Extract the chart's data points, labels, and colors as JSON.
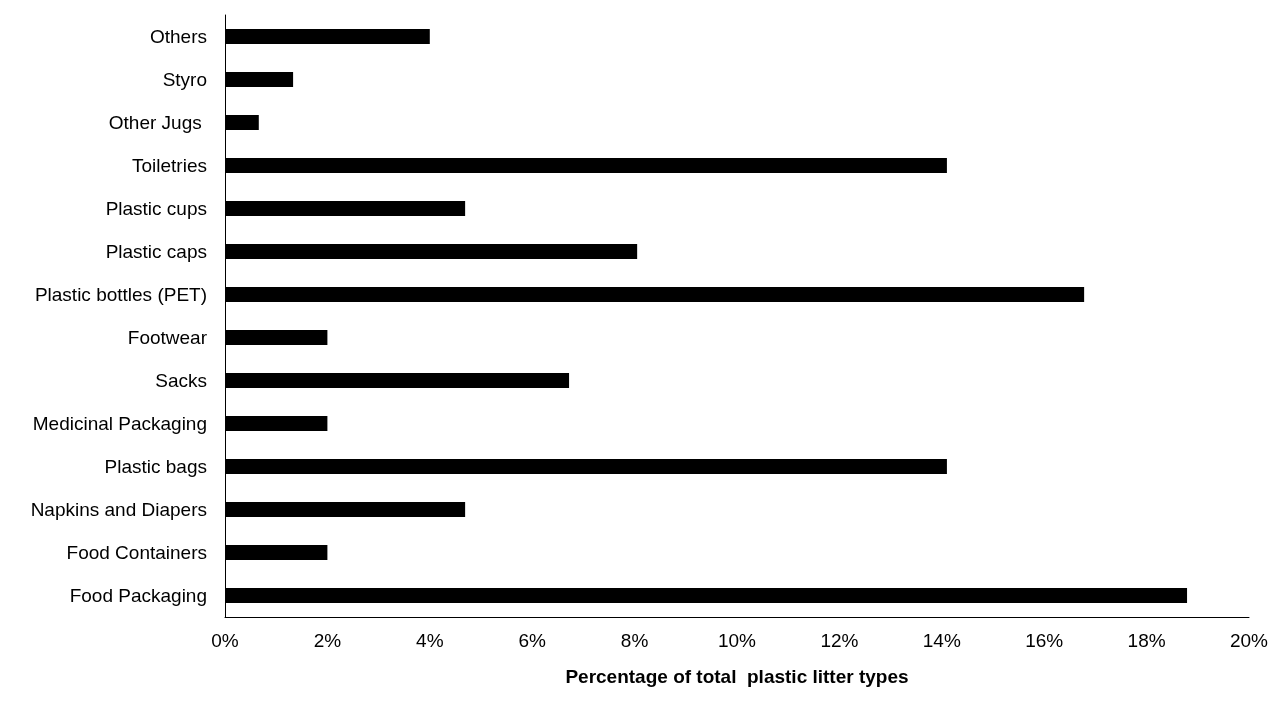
{
  "chart_data": {
    "type": "bar",
    "orientation": "horizontal",
    "xlabel": "Percentage of total  plastic litter types",
    "categories": [
      "Others",
      "Styro",
      "Other Jugs ",
      "Toiletries",
      "Plastic cups",
      "Plastic caps",
      "Plastic bottles (PET)",
      "Footwear",
      "Sacks",
      "Medicinal Packaging",
      "Plastic bags",
      "Napkins and Diapers",
      "Food Containers",
      "Food Packaging"
    ],
    "values": [
      4.0,
      1.33,
      0.66,
      14.1,
      4.69,
      8.05,
      16.78,
      2.0,
      6.72,
      2.0,
      14.1,
      4.69,
      2.0,
      18.79
    ],
    "color": "#000000",
    "xlim": [
      0,
      20
    ],
    "xticks": [
      {
        "value": 0,
        "label": "0%"
      },
      {
        "value": 2,
        "label": "2%"
      },
      {
        "value": 4,
        "label": "4%"
      },
      {
        "value": 6,
        "label": "6%"
      },
      {
        "value": 8,
        "label": "8%"
      },
      {
        "value": 10,
        "label": "10%"
      },
      {
        "value": 12,
        "label": "12%"
      },
      {
        "value": 14,
        "label": "14%"
      },
      {
        "value": 16,
        "label": "16%"
      },
      {
        "value": 18,
        "label": "18%"
      },
      {
        "value": 20,
        "label": "20%"
      }
    ],
    "grid": false
  }
}
